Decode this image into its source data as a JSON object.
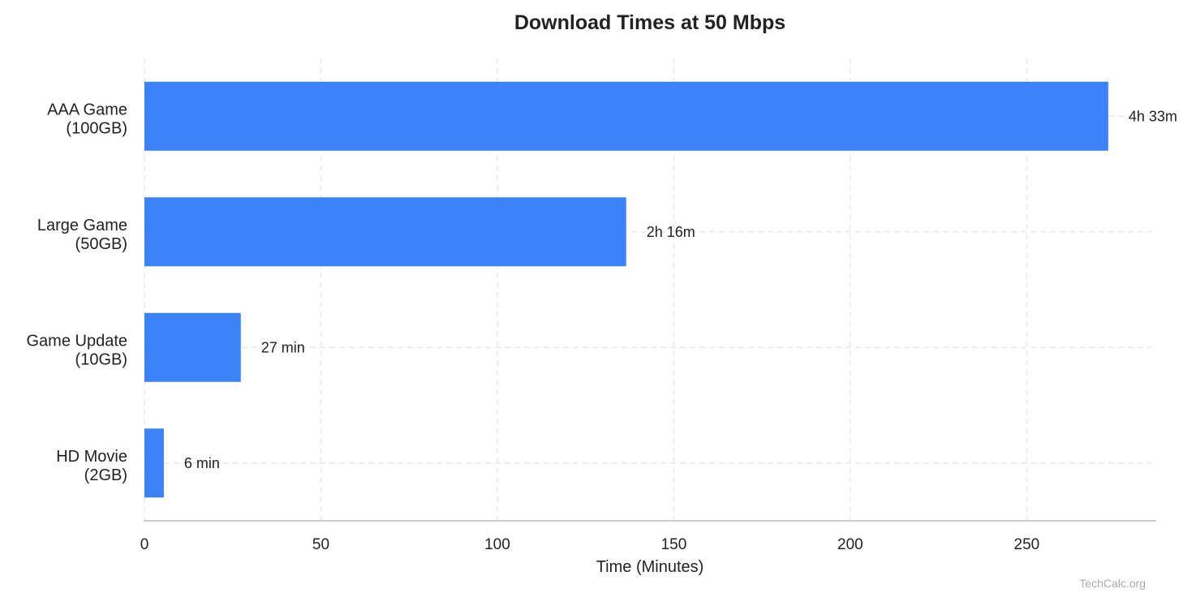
{
  "chart_data": {
    "type": "bar",
    "orientation": "horizontal",
    "title": "Download Times at 50 Mbps",
    "xlabel": "Time (Minutes)",
    "ylabel": "",
    "categories": [
      [
        "AAA Game",
        "(100GB)"
      ],
      [
        "Large Game",
        "(50GB)"
      ],
      [
        "Game Update",
        "(10GB)"
      ],
      [
        "HD Movie",
        "(2GB)"
      ]
    ],
    "values": [
      273.1,
      136.5,
      27.3,
      5.5
    ],
    "data_labels": [
      "4h 33m",
      "2h 16m",
      "27 min",
      "6 min"
    ],
    "xlim": [
      0,
      286.7
    ],
    "xticks": [
      0,
      50,
      100,
      150,
      200,
      250
    ],
    "grid": true,
    "bar_color": "#3b82f6",
    "watermark": "TechCalc.org"
  }
}
